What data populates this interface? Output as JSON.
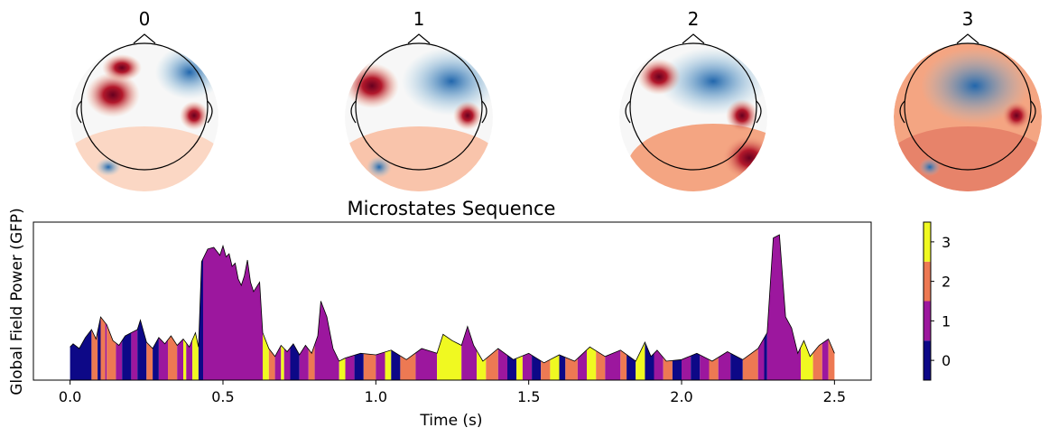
{
  "topomaps": {
    "labels": [
      "0",
      "1",
      "2",
      "3"
    ]
  },
  "chart_data": {
    "type": "area",
    "title": "Microstates Sequence",
    "xlabel": "Time (s)",
    "ylabel": "Global Field Power (GFP)",
    "xlim": [
      -0.12,
      2.62
    ],
    "ylim": [
      0,
      1.0
    ],
    "xticks": [
      0.0,
      0.5,
      1.0,
      1.5,
      2.0,
      2.5
    ],
    "xtick_labels": [
      "0.0",
      "0.5",
      "1.0",
      "1.5",
      "2.0",
      "2.5"
    ],
    "gfp_x": [
      0.0,
      0.01,
      0.03,
      0.05,
      0.07,
      0.085,
      0.1,
      0.12,
      0.14,
      0.16,
      0.18,
      0.2,
      0.22,
      0.23,
      0.25,
      0.27,
      0.29,
      0.31,
      0.33,
      0.35,
      0.37,
      0.39,
      0.41,
      0.42,
      0.43,
      0.45,
      0.47,
      0.49,
      0.5,
      0.51,
      0.52,
      0.53,
      0.54,
      0.55,
      0.56,
      0.57,
      0.58,
      0.59,
      0.6,
      0.61,
      0.62,
      0.63,
      0.65,
      0.67,
      0.69,
      0.71,
      0.73,
      0.75,
      0.77,
      0.79,
      0.81,
      0.82,
      0.84,
      0.86,
      0.88,
      0.9,
      0.95,
      1.0,
      1.05,
      1.1,
      1.15,
      1.2,
      1.22,
      1.25,
      1.28,
      1.3,
      1.32,
      1.35,
      1.4,
      1.45,
      1.5,
      1.55,
      1.6,
      1.65,
      1.7,
      1.75,
      1.8,
      1.85,
      1.88,
      1.9,
      1.92,
      1.95,
      2.0,
      2.05,
      2.1,
      2.15,
      2.2,
      2.25,
      2.28,
      2.3,
      2.32,
      2.34,
      2.36,
      2.38,
      2.4,
      2.42,
      2.45,
      2.48,
      2.5
    ],
    "gfp_y": [
      0.21,
      0.23,
      0.2,
      0.27,
      0.32,
      0.26,
      0.4,
      0.35,
      0.25,
      0.22,
      0.28,
      0.3,
      0.32,
      0.38,
      0.24,
      0.2,
      0.27,
      0.23,
      0.28,
      0.22,
      0.26,
      0.21,
      0.3,
      0.21,
      0.75,
      0.83,
      0.84,
      0.79,
      0.85,
      0.78,
      0.8,
      0.72,
      0.74,
      0.64,
      0.6,
      0.66,
      0.76,
      0.62,
      0.56,
      0.59,
      0.62,
      0.3,
      0.2,
      0.15,
      0.22,
      0.18,
      0.23,
      0.16,
      0.22,
      0.17,
      0.28,
      0.5,
      0.4,
      0.2,
      0.12,
      0.14,
      0.17,
      0.16,
      0.19,
      0.13,
      0.2,
      0.17,
      0.29,
      0.25,
      0.22,
      0.34,
      0.22,
      0.12,
      0.2,
      0.13,
      0.17,
      0.11,
      0.16,
      0.12,
      0.21,
      0.15,
      0.19,
      0.12,
      0.24,
      0.15,
      0.19,
      0.12,
      0.13,
      0.17,
      0.12,
      0.18,
      0.13,
      0.2,
      0.3,
      0.9,
      0.92,
      0.4,
      0.33,
      0.17,
      0.25,
      0.15,
      0.22,
      0.26,
      0.17
    ],
    "segments": [
      [
        0.0,
        0.07,
        0
      ],
      [
        0.07,
        0.09,
        2
      ],
      [
        0.09,
        0.1,
        0
      ],
      [
        0.1,
        0.115,
        2
      ],
      [
        0.115,
        0.12,
        1
      ],
      [
        0.12,
        0.15,
        2
      ],
      [
        0.15,
        0.17,
        1
      ],
      [
        0.17,
        0.2,
        0
      ],
      [
        0.2,
        0.22,
        1
      ],
      [
        0.22,
        0.25,
        0
      ],
      [
        0.25,
        0.27,
        2
      ],
      [
        0.27,
        0.29,
        0
      ],
      [
        0.29,
        0.32,
        1
      ],
      [
        0.32,
        0.35,
        2
      ],
      [
        0.35,
        0.37,
        1
      ],
      [
        0.37,
        0.38,
        3
      ],
      [
        0.38,
        0.4,
        1
      ],
      [
        0.4,
        0.42,
        3
      ],
      [
        0.42,
        0.435,
        0
      ],
      [
        0.435,
        0.63,
        1
      ],
      [
        0.63,
        0.65,
        3
      ],
      [
        0.65,
        0.67,
        2
      ],
      [
        0.67,
        0.69,
        1
      ],
      [
        0.69,
        0.7,
        3
      ],
      [
        0.7,
        0.72,
        1
      ],
      [
        0.72,
        0.75,
        0
      ],
      [
        0.75,
        0.78,
        1
      ],
      [
        0.78,
        0.8,
        2
      ],
      [
        0.8,
        0.88,
        1
      ],
      [
        0.88,
        0.9,
        3
      ],
      [
        0.9,
        0.93,
        1
      ],
      [
        0.93,
        0.96,
        0
      ],
      [
        0.96,
        1.0,
        2
      ],
      [
        1.0,
        1.03,
        1
      ],
      [
        1.03,
        1.05,
        3
      ],
      [
        1.05,
        1.08,
        0
      ],
      [
        1.08,
        1.13,
        2
      ],
      [
        1.13,
        1.2,
        1
      ],
      [
        1.2,
        1.28,
        3
      ],
      [
        1.28,
        1.33,
        1
      ],
      [
        1.33,
        1.36,
        3
      ],
      [
        1.36,
        1.4,
        2
      ],
      [
        1.4,
        1.43,
        1
      ],
      [
        1.43,
        1.46,
        0
      ],
      [
        1.46,
        1.48,
        3
      ],
      [
        1.48,
        1.51,
        1
      ],
      [
        1.51,
        1.54,
        0
      ],
      [
        1.54,
        1.57,
        2
      ],
      [
        1.57,
        1.6,
        3
      ],
      [
        1.6,
        1.62,
        0
      ],
      [
        1.62,
        1.66,
        2
      ],
      [
        1.66,
        1.69,
        1
      ],
      [
        1.69,
        1.72,
        3
      ],
      [
        1.72,
        1.75,
        2
      ],
      [
        1.75,
        1.8,
        1
      ],
      [
        1.8,
        1.82,
        2
      ],
      [
        1.82,
        1.85,
        0
      ],
      [
        1.85,
        1.88,
        3
      ],
      [
        1.88,
        1.91,
        0
      ],
      [
        1.91,
        1.94,
        1
      ],
      [
        1.94,
        1.97,
        2
      ],
      [
        1.97,
        2.0,
        0
      ],
      [
        2.0,
        2.03,
        1
      ],
      [
        2.03,
        2.06,
        0
      ],
      [
        2.06,
        2.09,
        1
      ],
      [
        2.09,
        2.12,
        2
      ],
      [
        2.12,
        2.16,
        1
      ],
      [
        2.16,
        2.2,
        0
      ],
      [
        2.2,
        2.25,
        2
      ],
      [
        2.25,
        2.27,
        1
      ],
      [
        2.27,
        2.28,
        0
      ],
      [
        2.28,
        2.39,
        1
      ],
      [
        2.39,
        2.43,
        3
      ],
      [
        2.43,
        2.46,
        2
      ],
      [
        2.46,
        2.48,
        1
      ],
      [
        2.48,
        2.5,
        2
      ]
    ],
    "colorbar": {
      "ticks": [
        0,
        1,
        2,
        3
      ],
      "tick_labels": [
        "0",
        "1",
        "2",
        "3"
      ],
      "colors": [
        "#0d0887",
        "#9c179e",
        "#ed7953",
        "#f0f921"
      ]
    }
  }
}
